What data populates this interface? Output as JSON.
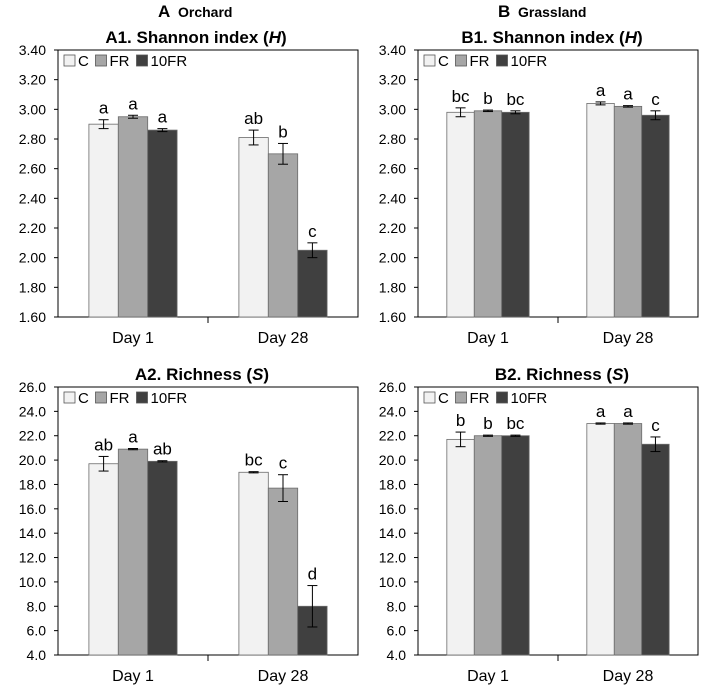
{
  "panel_headers": [
    {
      "letter": "A",
      "label": "Orchard"
    },
    {
      "letter": "B",
      "label": "Grassland"
    }
  ],
  "legend": {
    "items": [
      "C",
      "FR",
      "10FR"
    ]
  },
  "colors": {
    "C": "#f2f2f2",
    "FR": "#a6a6a6",
    "10FR": "#404040",
    "frame": "#000000"
  },
  "chart_data": [
    {
      "id": "A1",
      "type": "bar",
      "group": "Orchard",
      "title": "A1. Shannon index (",
      "title_italic": "H",
      "title_end": ")",
      "categories": [
        "Day 1",
        "Day 28"
      ],
      "ylim": [
        1.6,
        3.4
      ],
      "yticks": [
        "1.60",
        "1.80",
        "2.00",
        "2.20",
        "2.40",
        "2.60",
        "2.80",
        "3.00",
        "3.20",
        "3.40"
      ],
      "series": [
        {
          "name": "C",
          "values": [
            2.9,
            2.81
          ],
          "errors": [
            0.03,
            0.05
          ],
          "letters": [
            "a",
            "ab"
          ]
        },
        {
          "name": "FR",
          "values": [
            2.95,
            2.7
          ],
          "errors": [
            0.01,
            0.07
          ],
          "letters": [
            "a",
            "b"
          ]
        },
        {
          "name": "10FR",
          "values": [
            2.86,
            2.05
          ],
          "errors": [
            0.01,
            0.05
          ],
          "letters": [
            "a",
            "c"
          ]
        }
      ]
    },
    {
      "id": "B1",
      "type": "bar",
      "group": "Grassland",
      "title": "B1. Shannon index (",
      "title_italic": "H",
      "title_end": ")",
      "categories": [
        "Day 1",
        "Day 28"
      ],
      "ylim": [
        1.6,
        3.4
      ],
      "yticks": [
        "1.60",
        "1.80",
        "2.00",
        "2.20",
        "2.40",
        "2.60",
        "2.80",
        "3.00",
        "3.20",
        "3.40"
      ],
      "series": [
        {
          "name": "C",
          "values": [
            2.98,
            3.04
          ],
          "errors": [
            0.03,
            0.01
          ],
          "letters": [
            "bc",
            "a"
          ]
        },
        {
          "name": "FR",
          "values": [
            2.99,
            3.02
          ],
          "errors": [
            0.005,
            0.005
          ],
          "letters": [
            "b",
            "a"
          ]
        },
        {
          "name": "10FR",
          "values": [
            2.98,
            2.96
          ],
          "errors": [
            0.01,
            0.03
          ],
          "letters": [
            "bc",
            "c"
          ]
        }
      ]
    },
    {
      "id": "A2",
      "type": "bar",
      "group": "Orchard",
      "title": "A2. Richness (",
      "title_italic": "S",
      "title_end": ")",
      "categories": [
        "Day 1",
        "Day 28"
      ],
      "ylim": [
        4.0,
        26.0
      ],
      "yticks": [
        "4.0",
        "6.0",
        "8.0",
        "10.0",
        "12.0",
        "14.0",
        "16.0",
        "18.0",
        "20.0",
        "22.0",
        "24.0",
        "26.0"
      ],
      "series": [
        {
          "name": "C",
          "values": [
            19.7,
            19.0
          ],
          "errors": [
            0.6,
            0.05
          ],
          "letters": [
            "ab",
            "bc"
          ]
        },
        {
          "name": "FR",
          "values": [
            20.9,
            17.7
          ],
          "errors": [
            0.05,
            1.1
          ],
          "letters": [
            "a",
            "c"
          ]
        },
        {
          "name": "10FR",
          "values": [
            19.9,
            8.0
          ],
          "errors": [
            0.05,
            1.7
          ],
          "letters": [
            "ab",
            "d"
          ]
        }
      ]
    },
    {
      "id": "B2",
      "type": "bar",
      "group": "Grassland",
      "title": "B2. Richness (",
      "title_italic": "S",
      "title_end": ")",
      "categories": [
        "Day 1",
        "Day 28"
      ],
      "ylim": [
        4.0,
        26.0
      ],
      "yticks": [
        "4.0",
        "6.0",
        "8.0",
        "10.0",
        "12.0",
        "14.0",
        "16.0",
        "18.0",
        "20.0",
        "22.0",
        "24.0",
        "26.0"
      ],
      "series": [
        {
          "name": "C",
          "values": [
            21.7,
            23.0
          ],
          "errors": [
            0.6,
            0.05
          ],
          "letters": [
            "b",
            "a"
          ]
        },
        {
          "name": "FR",
          "values": [
            22.0,
            23.0
          ],
          "errors": [
            0.05,
            0.05
          ],
          "letters": [
            "b",
            "a"
          ]
        },
        {
          "name": "10FR",
          "values": [
            22.0,
            21.3
          ],
          "errors": [
            0.05,
            0.6
          ],
          "letters": [
            "bc",
            "c"
          ]
        }
      ]
    }
  ]
}
